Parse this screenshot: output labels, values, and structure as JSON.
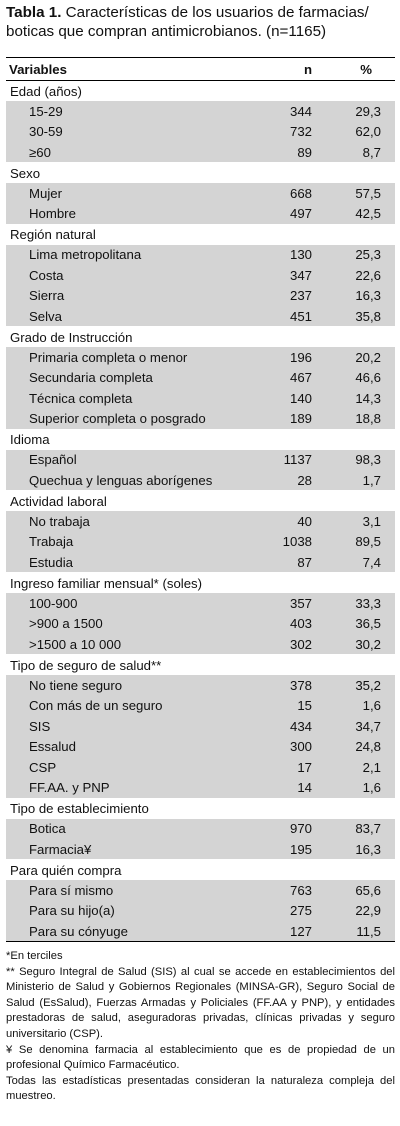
{
  "title": {
    "label": "Tabla 1.",
    "text": "Características de los usuarios de farmacias/ boticas que compran antimicrobianos. (n=1165)"
  },
  "table": {
    "headers": {
      "variable": "Variables",
      "n": "n",
      "percent": "%"
    },
    "sections": [
      {
        "label": "Edad (años)",
        "rows": [
          {
            "label": "15-29",
            "n": "344",
            "pct": "29,3"
          },
          {
            "label": "30-59",
            "n": "732",
            "pct": "62,0"
          },
          {
            "label": "≥60",
            "n": "89",
            "pct": "8,7"
          }
        ]
      },
      {
        "label": "Sexo",
        "rows": [
          {
            "label": "Mujer",
            "n": "668",
            "pct": "57,5"
          },
          {
            "label": "Hombre",
            "n": "497",
            "pct": "42,5"
          }
        ]
      },
      {
        "label": "Región natural",
        "rows": [
          {
            "label": "Lima metropolitana",
            "n": "130",
            "pct": "25,3"
          },
          {
            "label": "Costa",
            "n": "347",
            "pct": "22,6"
          },
          {
            "label": "Sierra",
            "n": "237",
            "pct": "16,3"
          },
          {
            "label": "Selva",
            "n": "451",
            "pct": "35,8"
          }
        ]
      },
      {
        "label": "Grado de Instrucción",
        "rows": [
          {
            "label": "Primaria completa o menor",
            "n": "196",
            "pct": "20,2"
          },
          {
            "label": "Secundaria completa",
            "n": "467",
            "pct": "46,6"
          },
          {
            "label": "Técnica completa",
            "n": "140",
            "pct": "14,3"
          },
          {
            "label": "Superior completa o posgrado",
            "n": "189",
            "pct": "18,8"
          }
        ]
      },
      {
        "label": "Idioma",
        "rows": [
          {
            "label": "Español",
            "n": "1137",
            "pct": "98,3"
          },
          {
            "label": "Quechua y lenguas aborígenes",
            "n": "28",
            "pct": "1,7"
          }
        ]
      },
      {
        "label": "Actividad laboral",
        "rows": [
          {
            "label": "No trabaja",
            "n": "40",
            "pct": "3,1"
          },
          {
            "label": "Trabaja",
            "n": "1038",
            "pct": "89,5"
          },
          {
            "label": "Estudia",
            "n": "87",
            "pct": "7,4"
          }
        ]
      },
      {
        "label": "Ingreso familiar mensual* (soles)",
        "rows": [
          {
            "label": "100-900",
            "n": "357",
            "pct": "33,3"
          },
          {
            "label": ">900 a 1500",
            "n": "403",
            "pct": "36,5"
          },
          {
            "label": ">1500 a 10 000",
            "n": "302",
            "pct": "30,2"
          }
        ]
      },
      {
        "label": "Tipo de seguro de salud**",
        "rows": [
          {
            "label": "No tiene seguro",
            "n": "378",
            "pct": "35,2"
          },
          {
            "label": "Con más de un seguro",
            "n": "15",
            "pct": "1,6"
          },
          {
            "label": "SIS",
            "n": "434",
            "pct": "34,7"
          },
          {
            "label": "Essalud",
            "n": "300",
            "pct": "24,8"
          },
          {
            "label": "CSP",
            "n": "17",
            "pct": "2,1"
          },
          {
            "label": "FF.AA. y PNP",
            "n": "14",
            "pct": "1,6"
          }
        ]
      },
      {
        "label": "Tipo de establecimiento",
        "rows": [
          {
            "label": "Botica",
            "n": "970",
            "pct": "83,7"
          },
          {
            "label": "Farmacia¥",
            "n": "195",
            "pct": "16,3"
          }
        ]
      },
      {
        "label": "Para quién compra",
        "rows": [
          {
            "label": "Para sí mismo",
            "n": "763",
            "pct": "65,6"
          },
          {
            "label": "Para su hijo(a)",
            "n": "275",
            "pct": "22,9"
          },
          {
            "label": "Para su cónyuge",
            "n": "127",
            "pct": "11,5"
          }
        ]
      }
    ]
  },
  "footnotes": [
    "*En terciles",
    "** Seguro Integral de Salud (SIS) al cual se accede en establecimientos del Ministerio de Salud y Gobiernos Regionales (MINSA-GR), Seguro Social de Salud (EsSalud), Fuerzas Armadas y Policiales (FF.AA y PNP), y entidades prestadoras de salud, aseguradoras privadas, clínicas privadas y seguro universitario (CSP).",
    "¥ Se denomina farmacia al establecimiento que es de propiedad de un profesional Químico Farmacéutico.",
    "Todas las estadísticas presentadas consideran la naturaleza compleja del muestreo."
  ],
  "colors": {
    "section_background": "#ffffff",
    "shaded_row": "#d4d4d4",
    "rule": "#000000"
  }
}
